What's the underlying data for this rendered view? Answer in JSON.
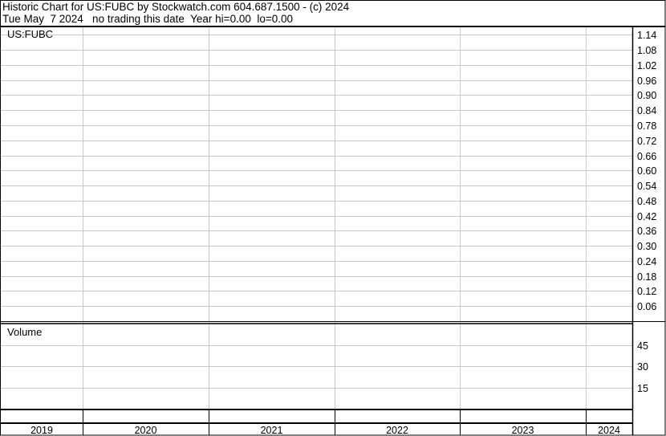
{
  "header": {
    "line1": "Historic Chart for US:FUBC by Stockwatch.com 604.687.1500 - (c) 2024",
    "line2": "Tue May  7 2024   no trading this date  Year hi=0.00  lo=0.00"
  },
  "chart_data": [
    {
      "type": "line",
      "title": "US:FUBC",
      "x_tick_labels": [
        "2019",
        "2020",
        "2021",
        "2022",
        "2023",
        "2024"
      ],
      "y_tick_labels": [
        "1.14",
        "1.08",
        "1.02",
        "0.96",
        "0.90",
        "0.84",
        "0.78",
        "0.72",
        "0.66",
        "0.60",
        "0.54",
        "0.48",
        "0.42",
        "0.36",
        "0.30",
        "0.24",
        "0.18",
        "0.12",
        "0.06"
      ],
      "ylim": [
        0,
        1.17
      ],
      "grid": true,
      "series": []
    },
    {
      "type": "bar",
      "title": "Volume",
      "x_tick_labels": [
        "2019",
        "2020",
        "2021",
        "2022",
        "2023",
        "2024"
      ],
      "y_tick_labels": [
        "45",
        "30",
        "15"
      ],
      "ylim": [
        0,
        60
      ],
      "grid": true,
      "series": []
    }
  ],
  "colors": {
    "grid": "#c8c8c8",
    "border": "#000000",
    "background": "#ffffff"
  }
}
